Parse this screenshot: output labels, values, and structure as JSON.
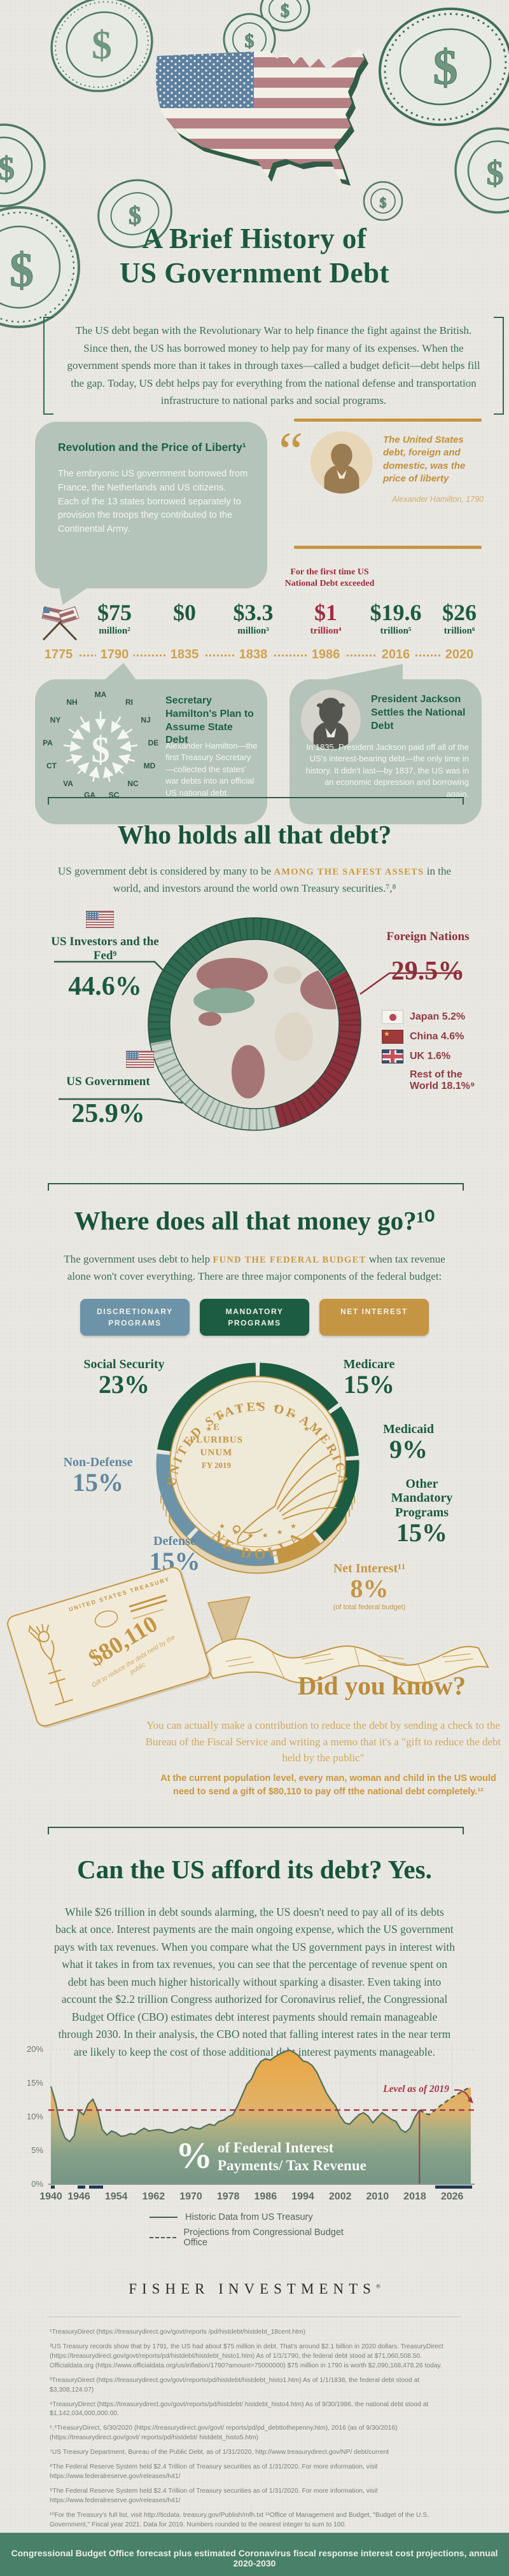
{
  "colors": {
    "green": "#1b5a41",
    "gold": "#c9973f",
    "red": "#8e2f3c",
    "blue": "#6d93a8",
    "sage": "#b5c4ba",
    "footer_green": "#49806a"
  },
  "header": {
    "title_line1": "A Brief History of",
    "title_line2": "US Government Debt",
    "intro": "The US debt began with the Revolutionary War to help finance the fight against the British. Since then, the US has borrowed money to help pay for many of its expenses. When the government spends more than it takes in through taxes—called a budget deficit—debt helps fill the gap. Today, US debt helps pay for everything from the national defense and transportation infrastructure to national parks and social programs."
  },
  "history": {
    "revolution_title": "Revolution and the Price of Liberty¹",
    "revolution_body": "The embryonic US government borrowed from France, the Netherlands and US citizens. Each of the 13 states borrowed separately to provision the troops they contributed to the Continental Army.",
    "quote_text": "The United States debt, foreign and domestic, was the price of liberty",
    "quote_attribution": "Alexander Hamilton, 1790",
    "first_time_note": "For the first time US National Debt exceeded",
    "timeline": [
      {
        "year": "1775",
        "value": "",
        "unit": "",
        "icon": "crossed-flags"
      },
      {
        "year": "1790",
        "value": "$75",
        "unit": "million²"
      },
      {
        "year": "1835",
        "value": "$0",
        "unit": ""
      },
      {
        "year": "1838",
        "value": "$3.3",
        "unit": "million³"
      },
      {
        "year": "1986",
        "value": "$1",
        "unit": "trillion⁴",
        "highlight": true
      },
      {
        "year": "2016",
        "value": "$19.6",
        "unit": "trillion⁵"
      },
      {
        "year": "2020",
        "value": "$26",
        "unit": "trillion⁶"
      }
    ],
    "hamilton_title": "Secretary Hamilton's Plan to Assume State Debt",
    "hamilton_body": "Alexander Hamilton—the first Treasury Secretary—collected the states' war debts into an official US national debt.",
    "hamilton_states": [
      "MA",
      "NH",
      "RI",
      "NY",
      "NJ",
      "PA",
      "DE",
      "CT",
      "MD",
      "VA",
      "NC",
      "GA",
      "SC"
    ],
    "jackson_title": "President Jackson Settles the National Debt",
    "jackson_body": "In 1835, President Jackson paid off all of the US's interest-bearing debt—the only time in history. It didn't last—by 1837, the US was in an economic depression and borrowing again."
  },
  "who_holds": {
    "title": "Who holds all that debt?",
    "subtitle_pre": "US government debt is considered by many to be ",
    "subtitle_highlight": "AMONG THE SAFEST ASSETS",
    "subtitle_post": " in the world, and investors around the world own Treasury securities.⁷,⁸",
    "labels": {
      "us_investors": "US Investors and the Fed⁹",
      "us_investors_pct": "44.6%",
      "foreign": "Foreign Nations",
      "foreign_pct": "29.5%",
      "us_gov": "US Government",
      "us_gov_pct": "25.9%"
    },
    "foreign_breakdown": [
      {
        "flag": "japan",
        "label": "Japan 5.2%"
      },
      {
        "flag": "china",
        "label": "China 4.6%"
      },
      {
        "flag": "uk",
        "label": "UK 1.6%"
      },
      {
        "flag": "",
        "label": "Rest of the World 18.1%⁹"
      }
    ]
  },
  "budget": {
    "title": "Where does all that money go?¹⁰",
    "subtitle_pre": "The government uses debt to help ",
    "subtitle_highlight": "FUND THE FEDERAL BUDGET",
    "subtitle_post": " when tax revenue alone won't cover everything. There are three major components of the federal budget:",
    "legend": [
      {
        "label": "DISCRETIONARY PROGRAMS",
        "color": "#6d93a8"
      },
      {
        "label": "MANDATORY PROGRAMS",
        "color": "#1c5c42"
      },
      {
        "label": "NET INTEREST",
        "color": "#c49643"
      }
    ],
    "coin": {
      "top": "UNITED STATES OF AMERICA",
      "middle_lines": [
        "E",
        "PLURIBUS",
        "UNUM"
      ],
      "fy": "FY 2019",
      "bottom": "ONE DOLLAR"
    },
    "labels": {
      "social": "Social Security",
      "social_pct": "23%",
      "medicare": "Medicare",
      "medicare_pct": "15%",
      "medicaid": "Medicaid",
      "medicaid_pct": "9%",
      "other": "Other Mandatory Programs",
      "other_pct": "15%",
      "nondef": "Non-Defense",
      "nondef_pct": "15%",
      "defense": "Defense",
      "defense_pct": "15%",
      "net": "Net Interest¹¹",
      "net_pct": "8%",
      "net_note": "(of total federal budget)"
    }
  },
  "did_you_know": {
    "title": "Did you know?",
    "body": "You can actually make a contribution to reduce the debt by sending a check to the Bureau of the Fiscal Service and writing a memo that it's a \"gift to reduce the debt held by the public\"",
    "callout": "At the current population level, every man, woman and child in the US would need to send a gift of $80,110 to pay off tthe national debt completely.¹²",
    "check_header": "UNITED STATES TREASURY",
    "check_amount": "$80,110",
    "check_memo": "Gift to reduce the debt held by the public"
  },
  "afford": {
    "title": "Can the US afford its debt? Yes.",
    "body": "While $26 trillion in debt sounds alarming, the US doesn't need to pay all of its debts back at once. Interest payments are the main ongoing expense, which the US government pays with tax revenues. When you compare what the US government pays in interest with what it takes in from tax revenues, you can see that the percentage of revenue spent on debt has been much higher historically without sparking a disaster. Even taking into account the $2.2 trillion Congress authorized for Coronavirus relief, the Congressional Budget Office (CBO) estimates debt interest payments should remain manageable through 2030. In their analysis, the CBO noted that falling interest rates in the near term are likely to keep the cost of those additional debt interest payments manageable."
  },
  "chart_section": {
    "label_pct": "%",
    "label_line1": "of Federal Interest",
    "label_line2": "Payments/ Tax Revenue",
    "annotation": "Level as of 2019",
    "legend_solid": "Historic Data from US Treasury",
    "legend_dashed": "Projections from Congressional Budget Office"
  },
  "brand": "Fisher Investments",
  "footnotes": [
    "¹TreasuryDirect (https://treasurydirect.gov/govt/reports /pd/histdebt/histdebt_18cent.htm)",
    "²US Treasury records show that by 1791, the US had about $75 million in debt. That's around $2.1 billion in 2020 dollars. TreasuryDirect (https://treasurydirect.gov/govt/reports/pd/histdebt/histdebt_histo1.htm)  As of 1/1/1790, the federal debt stood at $71,060,508.50. Officialdata.org (https://www.officialdata.org/us/inflation/1790?amount=75000000) $75 million in 1790 is worth $2,090,168,478.26 today.",
    "³TreasuryDirect (https://treasurydirect.gov/govt/reports/pd/histdebt/histdebt_histo1.htm) As of 1/1/1838, the federal debt stood at $3,308,124.07)",
    "⁴TreasuryDirect (https://treasurydirect.gov/govt/reports/pd/histdebt/ histdebt_histo4.htm)  As of 9/30/1986, the national debt stood at $1,142,034,000,000.00.",
    "⁵,⁶TreasuryDirect, 6/30/2020 (https://treasurydirect.gov/govt/ reports/pd/pd_debttothepenny.htm), 2016 (as of 9/30/2016) (https://treasurydirect.gov/govt/ reports/pd/histdebt/ histdebt_histo5.htm)",
    "⁷US Treasury Department, Bureau of the Public Debt, as of 1/31/2020, http://www.treasurydirect.gov/NP/ debt/current",
    "⁸The Federal Reserve System held $2.4 Trillion of Treasury securities as of 1/31/2020. For more information, visit https://www.federalreserve.gov/releases/h41/",
    "⁹The Federal Reserve System held $2.4 Trillion of Treasury securities as of 1/31/2020. For more information, visit https://www.federalreserve.gov/releases/h41/",
    "¹⁰For the Treasury's full list, visit http://ticdata. treasury.gov/Publish/mfh.txt ¹¹Office of Management and Budget, \"Budget of the U.S. Government,\" Fiscal year 2021. Data for 2019. Numbers rounded to the nearest integer to sum to 100.",
    "¹²The federal budget combines interest paid with interest received to calculate net interest.",
    "¹³US Census Bureau, Population Clock, https://www.census.gov/popclock/, Accessed 7/6/20 at 11:02 am Pacific time. US population: 329,908,130."
  ],
  "footer": "Congressional Budget Office forecast plus estimated Coronavirus fiscal response interest cost projections, annual 2020-2030",
  "chart_data": [
    {
      "type": "pie",
      "variant": "donut",
      "title": "Who holds all that debt?",
      "start_angle_deg": 259.4,
      "series": [
        {
          "name": "US Investors and the Fed",
          "value": 44.6,
          "color": "#2e6b52"
        },
        {
          "name": "Foreign Nations",
          "value": 29.5,
          "color": "#8e2f3c"
        },
        {
          "name": "US Government",
          "value": 25.9,
          "color": "#c7d4c9"
        }
      ],
      "foreign_detail": [
        {
          "name": "Japan",
          "value": 5.2
        },
        {
          "name": "China",
          "value": 4.6
        },
        {
          "name": "UK",
          "value": 1.6
        },
        {
          "name": "Rest of the World",
          "value": 18.1
        }
      ]
    },
    {
      "type": "pie",
      "variant": "coin-ring",
      "title": "Components of the federal budget (FY 2019)",
      "start_angle_deg": 0,
      "series": [
        {
          "name": "Medicare",
          "value": 15,
          "group": "Mandatory Programs",
          "color": "#1c5c42"
        },
        {
          "name": "Medicaid",
          "value": 9,
          "group": "Mandatory Programs",
          "color": "#1c5c42"
        },
        {
          "name": "Other Mandatory Programs",
          "value": 15,
          "group": "Mandatory Programs",
          "color": "#1c5c42"
        },
        {
          "name": "Net Interest",
          "value": 8,
          "group": "Net Interest",
          "color": "#c49643"
        },
        {
          "name": "Defense",
          "value": 15,
          "group": "Discretionary Programs",
          "color": "#6d93a8"
        },
        {
          "name": "Non-Defense",
          "value": 15,
          "group": "Discretionary Programs",
          "color": "#6d93a8"
        },
        {
          "name": "Social Security",
          "value": 23,
          "group": "Mandatory Programs",
          "color": "#1c5c42"
        }
      ]
    },
    {
      "type": "area",
      "title": "% of Federal Interest Payments/ Tax Revenue",
      "ylim": [
        0,
        20
      ],
      "yticks": [
        0,
        5,
        10,
        15,
        20
      ],
      "xticks": [
        1940,
        1946,
        1954,
        1962,
        1970,
        1978,
        1986,
        1994,
        2002,
        2010,
        2018,
        2026
      ],
      "reference_line": {
        "value": 11,
        "label": "Level as of 2019"
      },
      "historic": {
        "name": "Historic Data from US Treasury",
        "points": [
          [
            1940,
            14.5
          ],
          [
            1941,
            12.2
          ],
          [
            1942,
            8.6
          ],
          [
            1943,
            6.9
          ],
          [
            1944,
            6.3
          ],
          [
            1945,
            7.2
          ],
          [
            1946,
            10.9
          ],
          [
            1947,
            10.3
          ],
          [
            1948,
            11.9
          ],
          [
            1949,
            12.6
          ],
          [
            1950,
            11.0
          ],
          [
            1951,
            8.1
          ],
          [
            1952,
            7.3
          ],
          [
            1953,
            7.9
          ],
          [
            1954,
            7.6
          ],
          [
            1955,
            7.1
          ],
          [
            1956,
            7.2
          ],
          [
            1957,
            7.5
          ],
          [
            1958,
            7.4
          ],
          [
            1959,
            7.9
          ],
          [
            1960,
            8.3
          ],
          [
            1961,
            7.9
          ],
          [
            1962,
            8.0
          ],
          [
            1963,
            8.1
          ],
          [
            1964,
            8.0
          ],
          [
            1965,
            7.7
          ],
          [
            1966,
            7.6
          ],
          [
            1967,
            7.9
          ],
          [
            1968,
            8.2
          ],
          [
            1969,
            8.0
          ],
          [
            1970,
            8.5
          ],
          [
            1971,
            8.3
          ],
          [
            1972,
            8.2
          ],
          [
            1973,
            8.6
          ],
          [
            1974,
            8.9
          ],
          [
            1975,
            8.7
          ],
          [
            1976,
            9.3
          ],
          [
            1977,
            9.5
          ],
          [
            1978,
            10.0
          ],
          [
            1979,
            10.3
          ],
          [
            1980,
            11.6
          ],
          [
            1981,
            13.2
          ],
          [
            1982,
            14.8
          ],
          [
            1983,
            15.6
          ],
          [
            1984,
            17.2
          ],
          [
            1985,
            18.2
          ],
          [
            1986,
            18.6
          ],
          [
            1987,
            18.4
          ],
          [
            1988,
            18.9
          ],
          [
            1989,
            19.3
          ],
          [
            1990,
            19.6
          ],
          [
            1991,
            19.9
          ],
          [
            1992,
            19.6
          ],
          [
            1993,
            19.1
          ],
          [
            1994,
            18.3
          ],
          [
            1995,
            18.1
          ],
          [
            1996,
            17.6
          ],
          [
            1997,
            16.6
          ],
          [
            1998,
            15.1
          ],
          [
            1999,
            13.6
          ],
          [
            2000,
            12.5
          ],
          [
            2001,
            11.6
          ],
          [
            2002,
            10.1
          ],
          [
            2003,
            9.1
          ],
          [
            2004,
            8.9
          ],
          [
            2005,
            9.6
          ],
          [
            2006,
            10.3
          ],
          [
            2007,
            10.6
          ],
          [
            2008,
            10.1
          ],
          [
            2009,
            9.1
          ],
          [
            2010,
            9.9
          ],
          [
            2011,
            10.6
          ],
          [
            2012,
            10.1
          ],
          [
            2013,
            9.6
          ],
          [
            2014,
            9.3
          ],
          [
            2015,
            8.1
          ],
          [
            2016,
            7.7
          ],
          [
            2017,
            8.3
          ],
          [
            2018,
            9.9
          ],
          [
            2019,
            11.0
          ]
        ]
      },
      "projection": {
        "name": "Projections from Congressional Budget Office",
        "points": [
          [
            2019,
            11.0
          ],
          [
            2020,
            10.6
          ],
          [
            2021,
            10.3
          ],
          [
            2022,
            10.8
          ],
          [
            2023,
            11.4
          ],
          [
            2024,
            11.9
          ],
          [
            2025,
            12.4
          ],
          [
            2026,
            12.9
          ],
          [
            2027,
            13.3
          ],
          [
            2028,
            13.7
          ],
          [
            2029,
            14.1
          ],
          [
            2030,
            14.4
          ]
        ]
      }
    }
  ]
}
